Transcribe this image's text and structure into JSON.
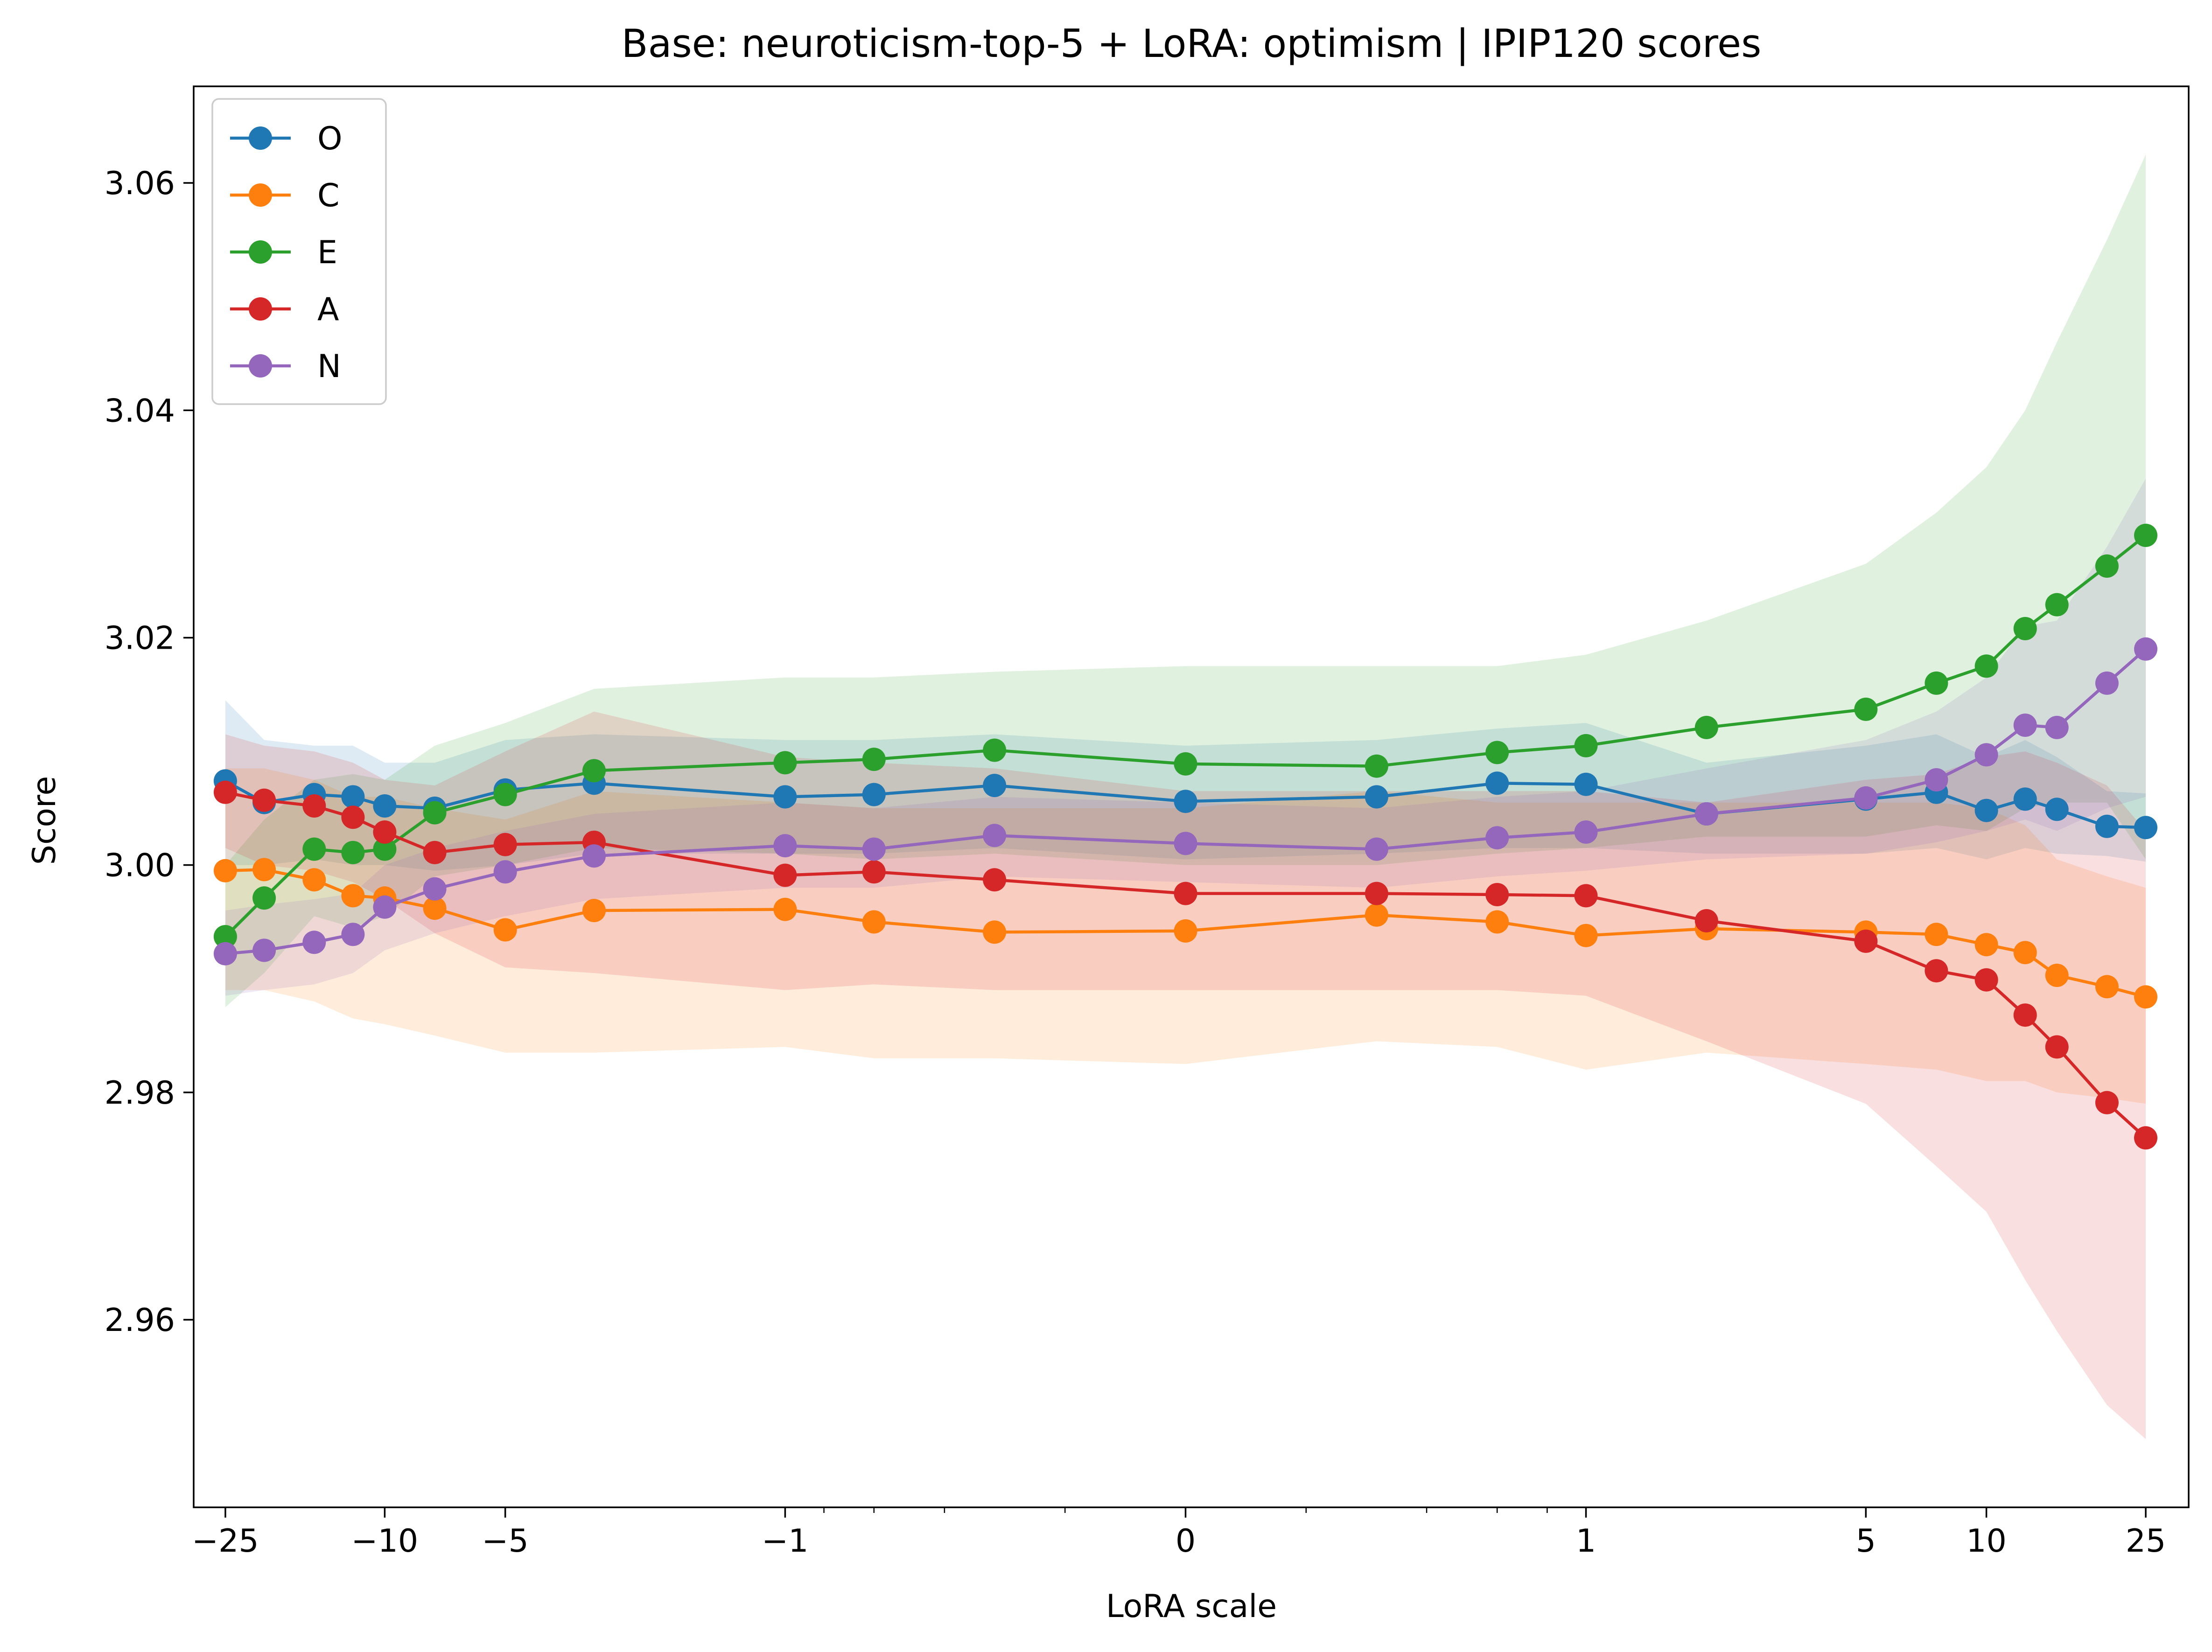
{
  "chart_data": {
    "type": "line",
    "title": "Base: neuroticism-top-5 + LoRA: optimism | IPIP120 scores",
    "xlabel": "LoRA scale",
    "ylabel": "Score",
    "xscale": "symlog",
    "xlim": [
      -30,
      32
    ],
    "ylim": [
      2.9435,
      3.0685
    ],
    "yticks": [
      2.96,
      2.98,
      3.0,
      3.02,
      3.04,
      3.06
    ],
    "ytick_labels": [
      "2.96",
      "2.98",
      "3.00",
      "3.02",
      "3.04",
      "3.06"
    ],
    "xticks": [
      -25,
      -10,
      -5,
      -1,
      0,
      1,
      5,
      10,
      25
    ],
    "xtick_labels": [
      "−25",
      "−10",
      "−5",
      "−1",
      "0",
      "1",
      "5",
      "10",
      "25"
    ],
    "legend_position": "upper-left",
    "x": [
      -25,
      -20,
      -15,
      -12,
      -10,
      -7.5,
      -5,
      -3,
      -1,
      -0.6,
      -0.3,
      0,
      0.3,
      0.6,
      1,
      2,
      5,
      7.5,
      10,
      12.5,
      15,
      20,
      25
    ],
    "series": [
      {
        "name": "O",
        "color": "#1f77b4",
        "values": [
          3.0074,
          3.0055,
          3.0062,
          3.006,
          3.0052,
          3.005,
          3.0066,
          3.0072,
          3.006,
          3.0062,
          3.007,
          3.0056,
          3.006,
          3.0072,
          3.0071,
          3.0045,
          3.0058,
          3.0064,
          3.0048,
          3.0058,
          3.0049,
          3.0034,
          3.0033
        ],
        "lower": [
          3.0,
          3.0,
          3.0005,
          3.0,
          3.0,
          2.9995,
          3.0,
          3.001,
          3.001,
          3.001,
          3.0015,
          3.0005,
          3.001,
          3.0015,
          3.0015,
          3.001,
          3.001,
          3.0015,
          3.0005,
          3.0015,
          3.001,
          3.0008,
          3.0003
        ],
        "upper": [
          3.0145,
          3.011,
          3.0105,
          3.0105,
          3.009,
          3.009,
          3.011,
          3.0115,
          3.011,
          3.011,
          3.0115,
          3.0105,
          3.011,
          3.012,
          3.0125,
          3.009,
          3.0105,
          3.0115,
          3.0095,
          3.011,
          3.0095,
          3.0065,
          3.0063
        ]
      },
      {
        "name": "C",
        "color": "#ff7f0e",
        "values": [
          2.9995,
          2.9996,
          2.9987,
          2.9973,
          2.9971,
          2.9962,
          2.9943,
          2.996,
          2.9961,
          2.995,
          2.9941,
          2.9942,
          2.9956,
          2.995,
          2.9938,
          2.9944,
          2.9941,
          2.9939,
          2.993,
          2.9923,
          2.9903,
          2.9893,
          2.9884
        ],
        "lower": [
          2.989,
          2.989,
          2.988,
          2.9865,
          2.986,
          2.985,
          2.9835,
          2.9835,
          2.984,
          2.983,
          2.983,
          2.9825,
          2.9845,
          2.984,
          2.982,
          2.9835,
          2.9825,
          2.982,
          2.981,
          2.981,
          2.98,
          2.9795,
          2.979
        ],
        "upper": [
          3.0085,
          3.0085,
          3.0075,
          3.006,
          3.006,
          3.005,
          3.004,
          3.0065,
          3.0055,
          3.005,
          3.005,
          3.005,
          3.0065,
          3.0055,
          3.0055,
          3.0055,
          3.0055,
          3.0055,
          3.005,
          3.0035,
          3.0005,
          2.999,
          2.998
        ]
      },
      {
        "name": "E",
        "color": "#2ca02c",
        "values": [
          2.9937,
          2.9971,
          3.0014,
          3.0011,
          3.0014,
          3.0046,
          3.0062,
          3.0083,
          3.009,
          3.0093,
          3.0101,
          3.0089,
          3.0087,
          3.0099,
          3.0105,
          3.0121,
          3.0137,
          3.016,
          3.0175,
          3.0208,
          3.0229,
          3.0263,
          3.029
        ],
        "lower": [
          2.9875,
          2.9905,
          2.9955,
          2.9945,
          2.9955,
          2.999,
          3.0,
          3.0015,
          3.001,
          3.0005,
          3.001,
          3.0,
          3.0,
          3.001,
          3.0015,
          3.0025,
          3.0025,
          3.0035,
          3.003,
          3.005,
          3.0055,
          3.0055,
          3.0005
        ],
        "upper": [
          3.0,
          3.004,
          3.0075,
          3.008,
          3.0075,
          3.0105,
          3.0125,
          3.0155,
          3.0165,
          3.0165,
          3.017,
          3.0175,
          3.0175,
          3.0175,
          3.0185,
          3.0215,
          3.0265,
          3.031,
          3.035,
          3.04,
          3.046,
          3.055,
          3.0625
        ]
      },
      {
        "name": "A",
        "color": "#d62728",
        "values": [
          3.0064,
          3.0057,
          3.0052,
          3.0042,
          3.0029,
          3.0011,
          3.0018,
          3.002,
          2.9991,
          2.9994,
          2.9987,
          2.9975,
          2.9975,
          2.9974,
          2.9973,
          2.9951,
          2.9933,
          2.9907,
          2.9899,
          2.9868,
          2.984,
          2.9791,
          2.976
        ],
        "lower": [
          3.0015,
          3.0,
          2.9995,
          2.9985,
          2.997,
          2.994,
          2.991,
          2.9905,
          2.989,
          2.9895,
          2.989,
          2.989,
          2.989,
          2.989,
          2.9885,
          2.9845,
          2.979,
          2.9735,
          2.9695,
          2.9635,
          2.959,
          2.9525,
          2.9495
        ],
        "upper": [
          3.0115,
          3.0105,
          3.01,
          3.009,
          3.0075,
          3.007,
          3.01,
          3.0135,
          3.0095,
          3.009,
          3.0085,
          3.0065,
          3.0065,
          3.0065,
          3.0065,
          3.0055,
          3.0075,
          3.008,
          3.0095,
          3.01,
          3.009,
          3.007,
          3.003
        ]
      },
      {
        "name": "N",
        "color": "#9467bd",
        "values": [
          2.9922,
          2.9925,
          2.9932,
          2.9939,
          2.9963,
          2.9979,
          2.9994,
          3.0008,
          3.0017,
          3.0014,
          3.0026,
          3.0019,
          3.0014,
          3.0024,
          3.0029,
          3.0045,
          3.0059,
          3.0075,
          3.0097,
          3.0123,
          3.0121,
          3.016,
          3.019
        ],
        "lower": [
          2.9885,
          2.989,
          2.9895,
          2.9905,
          2.9925,
          2.994,
          2.9955,
          2.997,
          2.998,
          2.998,
          2.999,
          2.9985,
          2.998,
          2.999,
          2.9995,
          3.0005,
          3.001,
          3.002,
          3.003,
          3.004,
          3.003,
          3.005,
          3.006
        ],
        "upper": [
          2.996,
          2.9965,
          2.997,
          2.9975,
          3.0,
          3.0015,
          3.003,
          3.0045,
          3.0055,
          3.005,
          3.006,
          3.0055,
          3.005,
          3.006,
          3.0065,
          3.0085,
          3.011,
          3.0135,
          3.0165,
          3.021,
          3.0215,
          3.028,
          3.034
        ]
      }
    ]
  }
}
